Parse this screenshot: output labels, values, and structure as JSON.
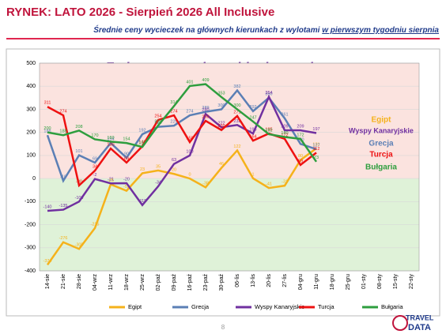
{
  "header": {
    "title": "RYNEK: LATO 2026 - Sierpień 2026 All Inclusive",
    "subtitle": "Średnie ceny wycieczek na głównych kierunkach  z wylotami ",
    "subtitle_underlined": "w pierwszym tygodniu sierpnia"
  },
  "chart_data": {
    "type": "line",
    "title": "Zmiany cen wobec ubiegłego roku",
    "categories": [
      "14-sie",
      "21-sie",
      "28-sie",
      "04-wrz",
      "11-wrz",
      "18-wrz",
      "25-wrz",
      "02-paź",
      "09-paź",
      "16-paź",
      "23-paź",
      "30-paź",
      "06-lis",
      "13-lis",
      "20-lis",
      "27-lis",
      "04-gru",
      "11-gru",
      "18-gru",
      "25-gru",
      "01-sty",
      "08-sty",
      "15-sty",
      "22-sty"
    ],
    "series": [
      {
        "name": "Egipt",
        "color": "#f5b21b",
        "values": [
          -374,
          -276,
          -305,
          -215,
          -25,
          -53,
          23,
          35,
          20,
          0,
          -38,
          46,
          122,
          1,
          -41,
          -31,
          80,
          131,
          null,
          null,
          null,
          null,
          null,
          null
        ]
      },
      {
        "name": "Grecja",
        "color": "#5b7fb5",
        "values": [
          188,
          -10,
          101,
          69,
          154,
          90,
          192,
          224,
          229,
          274,
          289,
          300,
          382,
          292,
          350,
          261,
          150,
          127,
          null,
          null,
          null,
          null,
          null,
          null
        ]
      },
      {
        "name": "Wyspy Kanaryjskie",
        "color": "#7030a0",
        "values": [
          -140,
          -135,
          -100,
          -2,
          -21,
          -20,
          -115,
          -34,
          63,
          100,
          280,
          222,
          232,
          195,
          354,
          209,
          209,
          197,
          null,
          null,
          null,
          null,
          null,
          null
        ]
      },
      {
        "name": "Turcja",
        "color": "#ee1111",
        "values": [
          311,
          274,
          -30,
          34,
          130,
          69,
          140,
          254,
          274,
          158,
          250,
          210,
          271,
          164,
          195,
          172,
          59,
          112,
          null,
          null,
          null,
          null,
          null,
          null
        ]
      },
      {
        "name": "Bułgaria",
        "color": "#2e9e3e",
        "values": [
          200,
          188,
          208,
          170,
          160,
          154,
          137,
          230,
          314,
          401,
          409,
          353,
          300,
          247,
          192,
          180,
          172,
          73,
          null,
          null,
          null,
          null,
          null,
          null
        ]
      }
    ],
    "ylim": [
      -400,
      500
    ],
    "yticks": [
      -400,
      -300,
      -200,
      -100,
      0,
      100,
      200,
      300,
      400,
      500
    ],
    "grid": true
  },
  "footer": {
    "page": "8",
    "logo_top": "TRAVEL",
    "logo_bottom": "DATA"
  }
}
